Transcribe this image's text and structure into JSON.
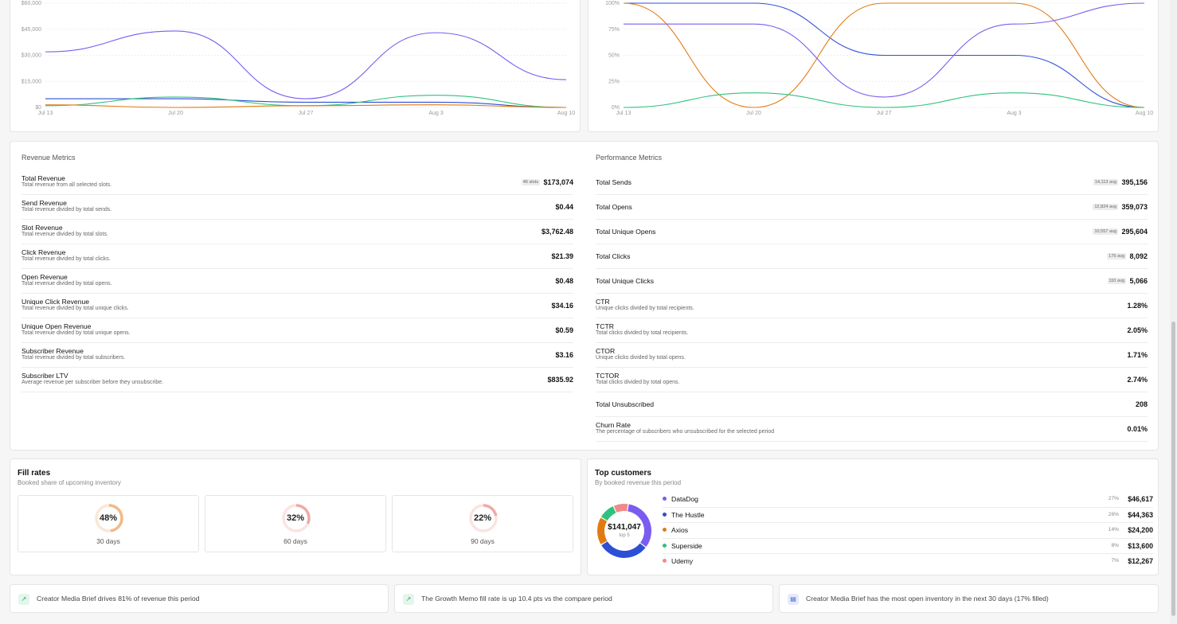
{
  "charts": {
    "revenue_chart": {
      "y_ticks": [
        "$60,000",
        "$45,000",
        "$30,000",
        "$15,000",
        "$0"
      ],
      "x_ticks": [
        "Jul 13",
        "Jul 20",
        "Jul 27",
        "Aug 3",
        "Aug 10"
      ]
    },
    "rate_chart": {
      "y_ticks": [
        "100%",
        "75%",
        "50%",
        "25%",
        "0%"
      ],
      "x_ticks": [
        "Jul 13",
        "Jul 20",
        "Jul 27",
        "Aug 3",
        "Aug 10"
      ]
    }
  },
  "chart_data": [
    {
      "type": "line",
      "x": [
        "Jul 13",
        "Jul 20",
        "Jul 27",
        "Aug 3",
        "Aug 10"
      ],
      "ylim": [
        0,
        60000
      ],
      "series": [
        {
          "color": "#7b5cf0",
          "values": [
            32000,
            44000,
            5000,
            43000,
            16000
          ]
        },
        {
          "color": "#2d4fd6",
          "values": [
            5000,
            5000,
            3000,
            3000,
            0
          ]
        },
        {
          "color": "#2ec27e",
          "values": [
            1000,
            6000,
            1000,
            7000,
            0
          ]
        },
        {
          "color": "#e07b12",
          "values": [
            1500,
            0,
            1000,
            1500,
            0
          ]
        }
      ]
    },
    {
      "type": "line",
      "x": [
        "Jul 13",
        "Jul 20",
        "Jul 27",
        "Aug 3",
        "Aug 10"
      ],
      "ylim": [
        0,
        100
      ],
      "series": [
        {
          "color": "#2d4fd6",
          "values": [
            100,
            100,
            50,
            50,
            0
          ]
        },
        {
          "color": "#e07b12",
          "values": [
            100,
            0,
            100,
            100,
            0
          ]
        },
        {
          "color": "#7b5cf0",
          "values": [
            80,
            80,
            10,
            80,
            100
          ]
        },
        {
          "color": "#2ec27e",
          "values": [
            0,
            14,
            0,
            14,
            0
          ]
        }
      ]
    }
  ],
  "revenue_metrics": {
    "title": "Revenue Metrics",
    "rows": [
      {
        "label": "Total Revenue",
        "desc": "Total revenue from all selected slots.",
        "badge": "46 slots",
        "value": "$173,074"
      },
      {
        "label": "Send Revenue",
        "desc": "Total revenue divided by total sends.",
        "badge": "",
        "value": "$0.44"
      },
      {
        "label": "Slot Revenue",
        "desc": "Total revenue divided by total slots.",
        "badge": "",
        "value": "$3,762.48"
      },
      {
        "label": "Click Revenue",
        "desc": "Total revenue divided by total clicks.",
        "badge": "",
        "value": "$21.39"
      },
      {
        "label": "Open Revenue",
        "desc": "Total revenue divided by total opens.",
        "badge": "",
        "value": "$0.48"
      },
      {
        "label": "Unique Click Revenue",
        "desc": "Total revenue divided by total unique clicks.",
        "badge": "",
        "value": "$34.16"
      },
      {
        "label": "Unique Open Revenue",
        "desc": "Total revenue divided by total unique opens.",
        "badge": "",
        "value": "$0.59"
      },
      {
        "label": "Subscriber Revenue",
        "desc": "Total revenue divided by total subscribers.",
        "badge": "",
        "value": "$3.16"
      },
      {
        "label": "Subscriber LTV",
        "desc": "Average revenue per subscriber before they unsubscribe.",
        "badge": "",
        "value": "$835.92"
      }
    ]
  },
  "performance_metrics": {
    "title": "Performance Metrics",
    "rows": [
      {
        "label": "Total Sends",
        "desc": "",
        "badge": "14,113 avg",
        "value": "395,156"
      },
      {
        "label": "Total Opens",
        "desc": "",
        "badge": "12,824 avg",
        "value": "359,073"
      },
      {
        "label": "Total Unique Opens",
        "desc": "",
        "badge": "10,557 avg",
        "value": "295,604"
      },
      {
        "label": "Total Clicks",
        "desc": "",
        "badge": "176 avg",
        "value": "8,092"
      },
      {
        "label": "Total Unique Clicks",
        "desc": "",
        "badge": "110 avg",
        "value": "5,066"
      },
      {
        "label": "CTR",
        "desc": "Unique clicks divided by total recipients.",
        "badge": "",
        "value": "1.28%"
      },
      {
        "label": "TCTR",
        "desc": "Total clicks divided by total recipients.",
        "badge": "",
        "value": "2.05%"
      },
      {
        "label": "CTOR",
        "desc": "Unique clicks divided by total opens.",
        "badge": "",
        "value": "1.71%"
      },
      {
        "label": "TCTOR",
        "desc": "Total clicks divided by total opens.",
        "badge": "",
        "value": "2.74%"
      },
      {
        "label": "Total Unsubscribed",
        "desc": "",
        "badge": "",
        "value": "208"
      },
      {
        "label": "Churn Rate",
        "desc": "The percentage of subscribers who unsubscribed for the selected period",
        "badge": "",
        "value": "0.01%"
      }
    ]
  },
  "fill_rates": {
    "title": "Fill rates",
    "subtitle": "Booked share of upcoming inventory",
    "items": [
      {
        "pct": "48%",
        "fraction": 0.48,
        "days": "30 days",
        "color": "#f2b98a",
        "track": "#fbe7d6"
      },
      {
        "pct": "32%",
        "fraction": 0.32,
        "days": "60 days",
        "color": "#efaaa6",
        "track": "#fbe3e1"
      },
      {
        "pct": "22%",
        "fraction": 0.22,
        "days": "90 days",
        "color": "#efaaa6",
        "track": "#fbe3e1"
      }
    ]
  },
  "top_customers": {
    "title": "Top customers",
    "subtitle": "By booked revenue this period",
    "donut_total": "$141,047",
    "donut_caption": "top 5",
    "items": [
      {
        "name": "DataDog",
        "pct": "27%",
        "share": 33,
        "value": "$46,617",
        "color": "#7b5cf0"
      },
      {
        "name": "The Hustle",
        "pct": "26%",
        "share": 31,
        "value": "$44,363",
        "color": "#2d4fd6"
      },
      {
        "name": "Axios",
        "pct": "14%",
        "share": 17,
        "value": "$24,200",
        "color": "#e07b12"
      },
      {
        "name": "Superside",
        "pct": "8%",
        "share": 10,
        "value": "$13,600",
        "color": "#2ec27e"
      },
      {
        "name": "Udemy",
        "pct": "7%",
        "share": 9,
        "value": "$12,267",
        "color": "#f08a8a"
      }
    ]
  },
  "insights": [
    {
      "icon": "trend-up-icon",
      "glyph": "↗",
      "text": "Creator Media Brief drives 81% of revenue this period",
      "bg": "#e3f6ec",
      "fg": "#2ea36a"
    },
    {
      "icon": "trend-up-icon",
      "glyph": "↗",
      "text": "The Growth Memo fill rate is up 10.4 pts vs the compare period",
      "bg": "#e3f6ec",
      "fg": "#2ea36a"
    },
    {
      "icon": "inventory-icon",
      "glyph": "▤",
      "text": "Creator Media Brief has the most open inventory in the next 30 days (17% filled)",
      "bg": "#e6ebfb",
      "fg": "#3c5bd8"
    }
  ]
}
